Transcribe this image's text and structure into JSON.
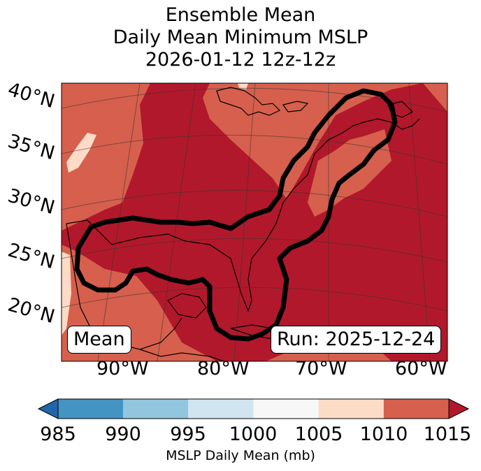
{
  "title": {
    "line1": "Ensemble Mean",
    "line2": "Daily Mean Minimum MSLP",
    "line3": "2026-01-12 12z-12z"
  },
  "map": {
    "latitude_labels": [
      "40°N",
      "35°N",
      "30°N",
      "25°N",
      "20°N"
    ],
    "longitude_labels": [
      "90°W",
      "80°W",
      "70°W",
      "60°W"
    ],
    "legend_box_left": "Mean",
    "legend_box_right": "Run: 2025-12-24",
    "colors": {
      "above_1010": "#b2182b",
      "range_1005_1010": "#d6604d",
      "range_1000_1005": "#fddbc7",
      "outline": "#000000"
    }
  },
  "colorbar": {
    "ticks": [
      "985",
      "990",
      "995",
      "1000",
      "1005",
      "1010",
      "1015"
    ],
    "label": "MSLP Daily Mean (mb)",
    "colors": [
      "#2166ac",
      "#4393c3",
      "#92c5de",
      "#d1e5f0",
      "#f7f7f7",
      "#fddbc7",
      "#d6604d",
      "#b2182b"
    ]
  }
}
